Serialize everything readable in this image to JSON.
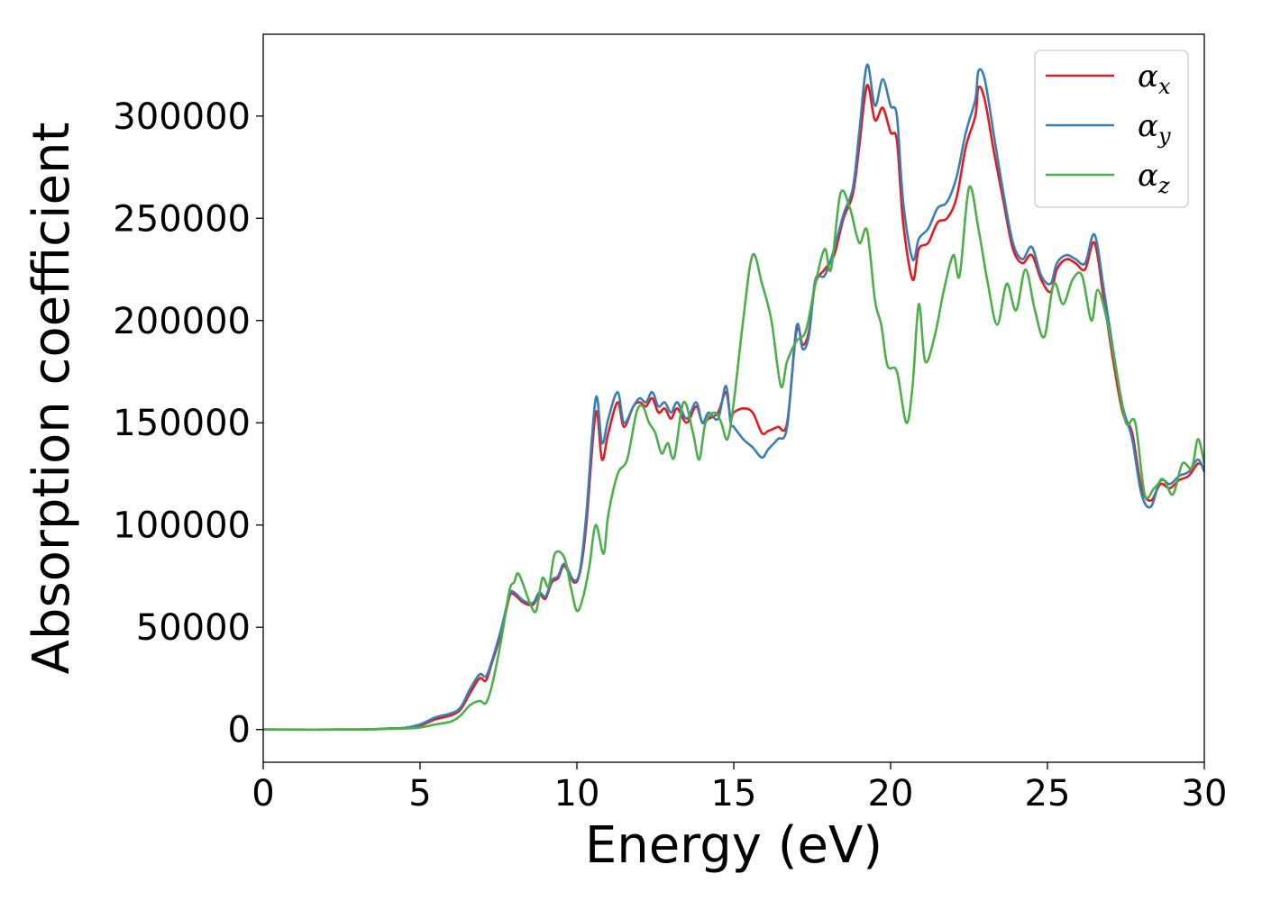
{
  "chart_data": {
    "type": "line",
    "title": "",
    "xlabel": "Energy (eV)",
    "ylabel": "Absorption coefficient",
    "xlim": [
      0,
      30
    ],
    "ylim": [
      -16000,
      340000
    ],
    "xticks": [
      0,
      5,
      10,
      15,
      20,
      25,
      30
    ],
    "yticks": [
      0,
      50000,
      100000,
      150000,
      200000,
      250000,
      300000
    ],
    "grid": false,
    "legend_position": "top-right",
    "series": [
      {
        "name": "α",
        "subscript": "x",
        "color": "#e41a1c",
        "points": [
          [
            0,
            0
          ],
          [
            3,
            0
          ],
          [
            4,
            500
          ],
          [
            4.5,
            800
          ],
          [
            5,
            2000
          ],
          [
            5.5,
            5000
          ],
          [
            6,
            7000
          ],
          [
            6.3,
            10000
          ],
          [
            6.6,
            18000
          ],
          [
            6.9,
            25000
          ],
          [
            7.1,
            24000
          ],
          [
            7.3,
            33000
          ],
          [
            7.6,
            48000
          ],
          [
            7.85,
            65000
          ],
          [
            8,
            66000
          ],
          [
            8.3,
            62000
          ],
          [
            8.6,
            61000
          ],
          [
            8.8,
            66000
          ],
          [
            9,
            64000
          ],
          [
            9.2,
            72000
          ],
          [
            9.4,
            74000
          ],
          [
            9.6,
            80000
          ],
          [
            9.9,
            72000
          ],
          [
            10.1,
            77000
          ],
          [
            10.3,
            100000
          ],
          [
            10.6,
            155000
          ],
          [
            10.8,
            132000
          ],
          [
            11,
            145000
          ],
          [
            11.3,
            160000
          ],
          [
            11.5,
            148000
          ],
          [
            11.8,
            158000
          ],
          [
            12,
            160000
          ],
          [
            12.2,
            158000
          ],
          [
            12.4,
            162000
          ],
          [
            12.6,
            155000
          ],
          [
            12.8,
            157000
          ],
          [
            13,
            152000
          ],
          [
            13.2,
            157000
          ],
          [
            13.5,
            150000
          ],
          [
            13.8,
            158000
          ],
          [
            14,
            150000
          ],
          [
            14.2,
            152000
          ],
          [
            14.5,
            155000
          ],
          [
            14.75,
            165000
          ],
          [
            14.9,
            152000
          ],
          [
            15,
            155000
          ],
          [
            15.3,
            157000
          ],
          [
            15.6,
            155000
          ],
          [
            15.9,
            145000
          ],
          [
            16.1,
            146000
          ],
          [
            16.4,
            148000
          ],
          [
            16.7,
            150000
          ],
          [
            17,
            195000
          ],
          [
            17.2,
            188000
          ],
          [
            17.4,
            195000
          ],
          [
            17.6,
            218000
          ],
          [
            17.9,
            225000
          ],
          [
            18.2,
            232000
          ],
          [
            18.5,
            250000
          ],
          [
            18.8,
            262000
          ],
          [
            19,
            285000
          ],
          [
            19.25,
            315000
          ],
          [
            19.5,
            298000
          ],
          [
            19.75,
            304000
          ],
          [
            20,
            292000
          ],
          [
            20.2,
            288000
          ],
          [
            20.4,
            248000
          ],
          [
            20.7,
            220000
          ],
          [
            20.9,
            235000
          ],
          [
            21.2,
            238000
          ],
          [
            21.5,
            248000
          ],
          [
            21.8,
            250000
          ],
          [
            22.1,
            260000
          ],
          [
            22.4,
            285000
          ],
          [
            22.7,
            300000
          ],
          [
            22.8,
            314000
          ],
          [
            23,
            308000
          ],
          [
            23.3,
            282000
          ],
          [
            23.6,
            258000
          ],
          [
            23.9,
            235000
          ],
          [
            24.2,
            228000
          ],
          [
            24.5,
            232000
          ],
          [
            24.8,
            220000
          ],
          [
            25.1,
            214000
          ],
          [
            25.3,
            225000
          ],
          [
            25.6,
            230000
          ],
          [
            25.9,
            228000
          ],
          [
            26.2,
            225000
          ],
          [
            26.5,
            238000
          ],
          [
            26.8,
            210000
          ],
          [
            27.1,
            180000
          ],
          [
            27.4,
            155000
          ],
          [
            27.7,
            145000
          ],
          [
            28,
            118000
          ],
          [
            28.3,
            112000
          ],
          [
            28.6,
            120000
          ],
          [
            28.9,
            118000
          ],
          [
            29.2,
            122000
          ],
          [
            29.5,
            124000
          ],
          [
            29.8,
            130000
          ],
          [
            30,
            128000
          ]
        ]
      },
      {
        "name": "α",
        "subscript": "y",
        "color": "#377eb8",
        "points": [
          [
            0,
            0
          ],
          [
            3,
            0
          ],
          [
            4,
            500
          ],
          [
            4.5,
            800
          ],
          [
            5,
            2500
          ],
          [
            5.5,
            6000
          ],
          [
            6,
            8000
          ],
          [
            6.3,
            11000
          ],
          [
            6.6,
            20000
          ],
          [
            6.9,
            27000
          ],
          [
            7.1,
            26000
          ],
          [
            7.3,
            34000
          ],
          [
            7.6,
            50000
          ],
          [
            7.85,
            66000
          ],
          [
            8,
            67000
          ],
          [
            8.3,
            63000
          ],
          [
            8.6,
            62000
          ],
          [
            8.8,
            67000
          ],
          [
            9,
            65000
          ],
          [
            9.2,
            73000
          ],
          [
            9.4,
            75000
          ],
          [
            9.6,
            81000
          ],
          [
            9.9,
            73000
          ],
          [
            10.1,
            78000
          ],
          [
            10.3,
            105000
          ],
          [
            10.6,
            162000
          ],
          [
            10.8,
            140000
          ],
          [
            11,
            152000
          ],
          [
            11.3,
            165000
          ],
          [
            11.5,
            150000
          ],
          [
            11.8,
            158000
          ],
          [
            12,
            162000
          ],
          [
            12.2,
            160000
          ],
          [
            12.4,
            165000
          ],
          [
            12.6,
            158000
          ],
          [
            12.8,
            160000
          ],
          [
            13,
            155000
          ],
          [
            13.2,
            160000
          ],
          [
            13.5,
            152000
          ],
          [
            13.8,
            160000
          ],
          [
            14,
            150000
          ],
          [
            14.2,
            155000
          ],
          [
            14.5,
            152000
          ],
          [
            14.75,
            168000
          ],
          [
            14.9,
            150000
          ],
          [
            15,
            148000
          ],
          [
            15.3,
            142000
          ],
          [
            15.6,
            138000
          ],
          [
            15.9,
            133000
          ],
          [
            16.1,
            137000
          ],
          [
            16.4,
            142000
          ],
          [
            16.7,
            148000
          ],
          [
            17,
            197000
          ],
          [
            17.2,
            186000
          ],
          [
            17.4,
            193000
          ],
          [
            17.6,
            220000
          ],
          [
            17.9,
            222000
          ],
          [
            18.2,
            235000
          ],
          [
            18.5,
            252000
          ],
          [
            18.8,
            265000
          ],
          [
            19,
            292000
          ],
          [
            19.25,
            325000
          ],
          [
            19.5,
            305000
          ],
          [
            19.75,
            318000
          ],
          [
            20,
            305000
          ],
          [
            20.2,
            300000
          ],
          [
            20.4,
            258000
          ],
          [
            20.7,
            230000
          ],
          [
            20.9,
            240000
          ],
          [
            21.2,
            245000
          ],
          [
            21.5,
            255000
          ],
          [
            21.8,
            258000
          ],
          [
            22.1,
            270000
          ],
          [
            22.4,
            292000
          ],
          [
            22.7,
            308000
          ],
          [
            22.8,
            322000
          ],
          [
            23,
            318000
          ],
          [
            23.3,
            290000
          ],
          [
            23.6,
            262000
          ],
          [
            23.9,
            238000
          ],
          [
            24.2,
            230000
          ],
          [
            24.5,
            236000
          ],
          [
            24.8,
            222000
          ],
          [
            25.1,
            218000
          ],
          [
            25.3,
            228000
          ],
          [
            25.6,
            232000
          ],
          [
            25.9,
            230000
          ],
          [
            26.2,
            228000
          ],
          [
            26.5,
            242000
          ],
          [
            26.8,
            215000
          ],
          [
            27.1,
            185000
          ],
          [
            27.4,
            158000
          ],
          [
            27.7,
            142000
          ],
          [
            28,
            115000
          ],
          [
            28.3,
            109000
          ],
          [
            28.6,
            122000
          ],
          [
            28.9,
            120000
          ],
          [
            29.2,
            124000
          ],
          [
            29.5,
            126000
          ],
          [
            29.8,
            132000
          ],
          [
            30,
            126000
          ]
        ]
      },
      {
        "name": "α",
        "subscript": "z",
        "color": "#4daf4a",
        "points": [
          [
            0,
            0
          ],
          [
            3,
            0
          ],
          [
            4,
            300
          ],
          [
            4.5,
            500
          ],
          [
            5,
            1000
          ],
          [
            5.5,
            2500
          ],
          [
            6,
            4000
          ],
          [
            6.3,
            7000
          ],
          [
            6.6,
            12000
          ],
          [
            6.9,
            14000
          ],
          [
            7.1,
            13000
          ],
          [
            7.3,
            22000
          ],
          [
            7.6,
            45000
          ],
          [
            7.85,
            68000
          ],
          [
            8,
            72000
          ],
          [
            8.15,
            76000
          ],
          [
            8.5,
            62000
          ],
          [
            8.7,
            58000
          ],
          [
            8.9,
            74000
          ],
          [
            9.1,
            70000
          ],
          [
            9.3,
            86000
          ],
          [
            9.6,
            84000
          ],
          [
            9.8,
            70000
          ],
          [
            10,
            58000
          ],
          [
            10.2,
            65000
          ],
          [
            10.4,
            80000
          ],
          [
            10.6,
            100000
          ],
          [
            10.85,
            86000
          ],
          [
            11,
            105000
          ],
          [
            11.3,
            125000
          ],
          [
            11.6,
            132000
          ],
          [
            11.9,
            155000
          ],
          [
            12.1,
            158000
          ],
          [
            12.3,
            150000
          ],
          [
            12.5,
            145000
          ],
          [
            12.7,
            135000
          ],
          [
            12.9,
            140000
          ],
          [
            13.1,
            133000
          ],
          [
            13.4,
            160000
          ],
          [
            13.7,
            145000
          ],
          [
            13.9,
            132000
          ],
          [
            14.1,
            150000
          ],
          [
            14.4,
            155000
          ],
          [
            14.6,
            150000
          ],
          [
            14.8,
            142000
          ],
          [
            15,
            160000
          ],
          [
            15.3,
            200000
          ],
          [
            15.6,
            232000
          ],
          [
            15.9,
            218000
          ],
          [
            16.2,
            200000
          ],
          [
            16.5,
            168000
          ],
          [
            16.7,
            180000
          ],
          [
            17,
            190000
          ],
          [
            17.3,
            195000
          ],
          [
            17.6,
            218000
          ],
          [
            17.9,
            235000
          ],
          [
            18.1,
            225000
          ],
          [
            18.4,
            262000
          ],
          [
            18.7,
            255000
          ],
          [
            19,
            238000
          ],
          [
            19.25,
            244000
          ],
          [
            19.5,
            210000
          ],
          [
            19.7,
            198000
          ],
          [
            19.9,
            178000
          ],
          [
            20.2,
            175000
          ],
          [
            20.5,
            150000
          ],
          [
            20.7,
            168000
          ],
          [
            20.9,
            208000
          ],
          [
            21.1,
            180000
          ],
          [
            21.4,
            192000
          ],
          [
            21.7,
            215000
          ],
          [
            22,
            232000
          ],
          [
            22.2,
            222000
          ],
          [
            22.5,
            265000
          ],
          [
            22.8,
            245000
          ],
          [
            23.1,
            218000
          ],
          [
            23.4,
            198000
          ],
          [
            23.7,
            218000
          ],
          [
            24,
            205000
          ],
          [
            24.3,
            225000
          ],
          [
            24.6,
            205000
          ],
          [
            24.9,
            192000
          ],
          [
            25.2,
            218000
          ],
          [
            25.5,
            208000
          ],
          [
            25.8,
            220000
          ],
          [
            26.1,
            222000
          ],
          [
            26.4,
            200000
          ],
          [
            26.6,
            215000
          ],
          [
            26.9,
            200000
          ],
          [
            27.2,
            175000
          ],
          [
            27.5,
            150000
          ],
          [
            27.8,
            150000
          ],
          [
            28.1,
            115000
          ],
          [
            28.4,
            118000
          ],
          [
            28.7,
            122000
          ],
          [
            29,
            115000
          ],
          [
            29.3,
            130000
          ],
          [
            29.6,
            128000
          ],
          [
            29.8,
            142000
          ],
          [
            30,
            130000
          ]
        ]
      }
    ]
  }
}
